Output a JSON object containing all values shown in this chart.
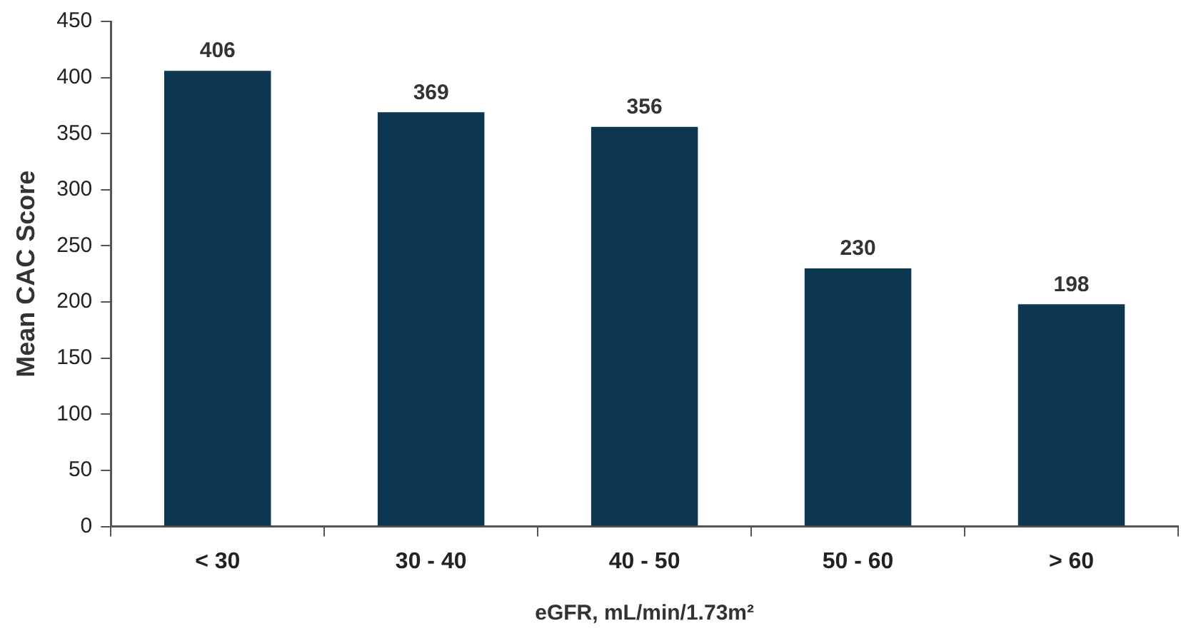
{
  "chart_data": {
    "type": "bar",
    "xlabel": "eGFR, mL/min/1.73m²",
    "ylabel": "Mean CAC Score",
    "categories": [
      "< 30",
      "30 - 40",
      "40 - 50",
      "50 - 60",
      "> 60"
    ],
    "values": [
      406,
      369,
      356,
      230,
      198
    ],
    "color": "#0d3651",
    "ylim": [
      0,
      450
    ],
    "yticks": [
      0,
      50,
      100,
      150,
      200,
      250,
      300,
      350,
      400,
      450
    ],
    "grid": false,
    "data_labels": true,
    "legend": false
  }
}
